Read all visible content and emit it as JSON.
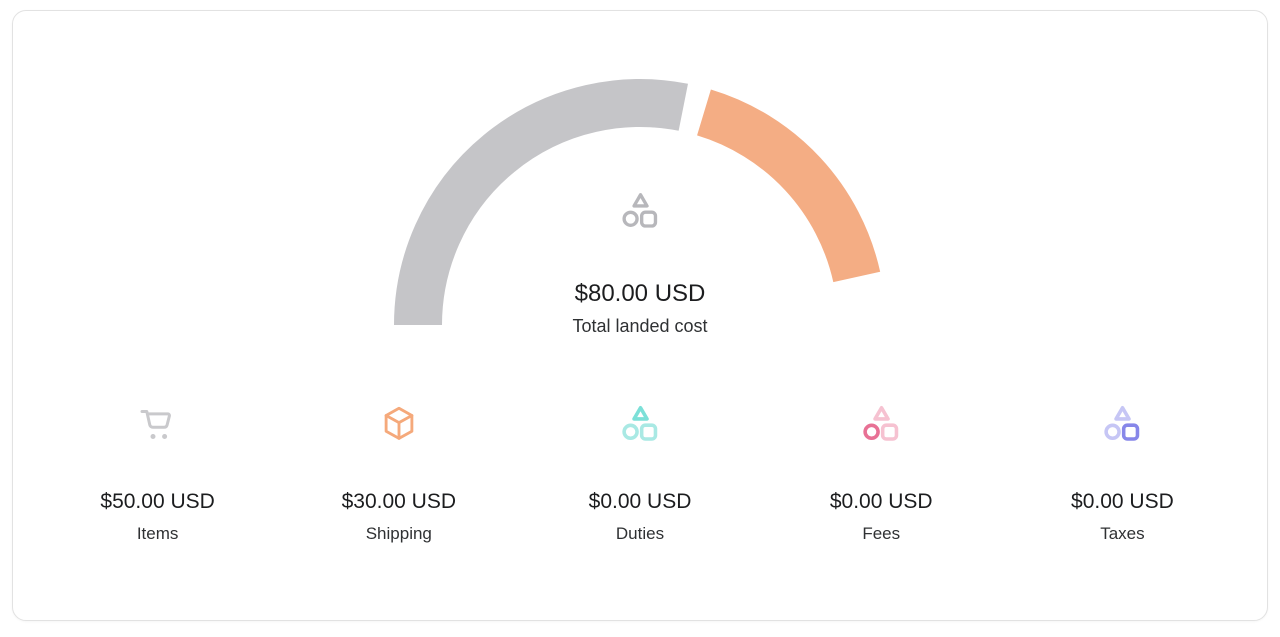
{
  "card": {
    "background": "#ffffff",
    "border_color": "#e2e2e2"
  },
  "gauge": {
    "center_icon": "shapes-icon",
    "center_icon_color": "#b7b7bb",
    "total_amount": "$80.00 USD",
    "total_label": "Total landed cost"
  },
  "chart_data": {
    "type": "gauge",
    "title": "Total landed cost",
    "center_label": {
      "amount": "$80.00 USD",
      "caption": "Total landed cost"
    },
    "total_value": 80,
    "units": "USD",
    "start_angle_degrees": 180,
    "arc_span_degrees": 162,
    "pad_degrees": 5.5,
    "legend_position": "none",
    "segments": [
      {
        "label": "Items",
        "value": 50,
        "amount": "$50.00 USD",
        "color": "#c5c5c8"
      },
      {
        "label": "Shipping",
        "value": 30,
        "amount": "$30.00 USD",
        "color": "#f4ad84"
      },
      {
        "label": "Duties",
        "value": 0,
        "amount": "$0.00 USD",
        "color": "#87e3dc"
      },
      {
        "label": "Fees",
        "value": 0,
        "amount": "$0.00 USD",
        "color": "#e87195"
      },
      {
        "label": "Taxes",
        "value": 0,
        "amount": "$0.00 USD",
        "color": "#8787e9"
      }
    ]
  },
  "breakdown": {
    "items": [
      {
        "label": "Items",
        "amount": "$50.00 USD",
        "icon": "cart-icon",
        "icon_color": "#c9c9cc"
      },
      {
        "label": "Shipping",
        "amount": "$30.00 USD",
        "icon": "package-icon",
        "icon_color": "#f5a97b"
      },
      {
        "label": "Duties",
        "amount": "$0.00 USD",
        "icon": "shapes-icon",
        "icon_color": "#a9e9e4",
        "icon_accent": "#7ce0d8",
        "accent_shape": "triangle"
      },
      {
        "label": "Fees",
        "amount": "$0.00 USD",
        "icon": "shapes-icon",
        "icon_color": "#f6c2d1",
        "icon_accent": "#e87195",
        "accent_shape": "circle"
      },
      {
        "label": "Taxes",
        "amount": "$0.00 USD",
        "icon": "shapes-icon",
        "icon_color": "#c6c6f5",
        "icon_accent": "#8787e9",
        "accent_shape": "square"
      }
    ]
  }
}
